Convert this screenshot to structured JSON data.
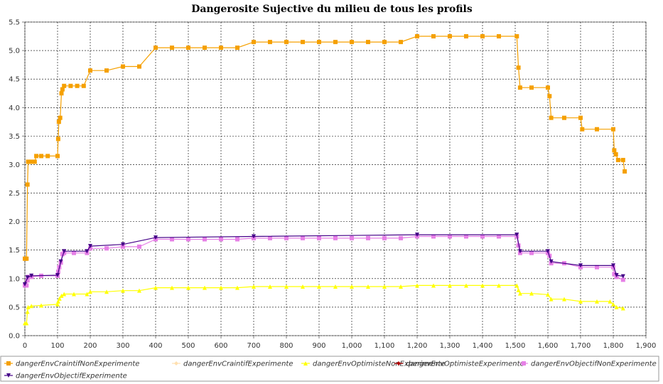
{
  "chart_data": {
    "type": "line",
    "title": "Dangerosite Sujective du milieu de tous les profils",
    "xlabel": "",
    "ylabel": "",
    "xlim": [
      0,
      1900
    ],
    "ylim": [
      0,
      5.5
    ],
    "x_ticks": [
      0,
      100,
      200,
      300,
      400,
      500,
      600,
      700,
      800,
      900,
      1000,
      1100,
      1200,
      1300,
      1400,
      1500,
      1600,
      1700,
      1800,
      1900
    ],
    "x_tick_labels": [
      "0",
      "100",
      "200",
      "300",
      "400",
      "500",
      "600",
      "700",
      "800",
      "900",
      "1,000",
      "1,100",
      "1,200",
      "1,300",
      "1,400",
      "1,500",
      "1,600",
      "1,700",
      "1,800",
      "1,900"
    ],
    "y_ticks": [
      0,
      0.5,
      1.0,
      1.5,
      2.0,
      2.5,
      3.0,
      3.5,
      4.0,
      4.5,
      5.0,
      5.5
    ],
    "y_tick_labels": [
      "0.0",
      "0.5",
      "1.0",
      "1.5",
      "2.0",
      "2.5",
      "3.0",
      "3.5",
      "4.0",
      "4.5",
      "5.0",
      "5.5"
    ],
    "grid": true,
    "legend_position": "bottom",
    "series": [
      {
        "name": "dangerEnvCraintifNonExperimente",
        "color": "#f5a000",
        "marker": "square",
        "points": [
          [
            0,
            1.35
          ],
          [
            5,
            1.35
          ],
          [
            8,
            2.65
          ],
          [
            10,
            3.05
          ],
          [
            20,
            3.05
          ],
          [
            30,
            3.05
          ],
          [
            35,
            3.15
          ],
          [
            50,
            3.15
          ],
          [
            70,
            3.15
          ],
          [
            100,
            3.15
          ],
          [
            102,
            3.45
          ],
          [
            104,
            3.75
          ],
          [
            108,
            3.82
          ],
          [
            112,
            4.25
          ],
          [
            115,
            4.32
          ],
          [
            120,
            4.38
          ],
          [
            140,
            4.38
          ],
          [
            160,
            4.38
          ],
          [
            180,
            4.38
          ],
          [
            200,
            4.65
          ],
          [
            250,
            4.65
          ],
          [
            300,
            4.72
          ],
          [
            350,
            4.72
          ],
          [
            400,
            5.05
          ],
          [
            450,
            5.05
          ],
          [
            500,
            5.05
          ],
          [
            550,
            5.05
          ],
          [
            600,
            5.05
          ],
          [
            650,
            5.05
          ],
          [
            700,
            5.15
          ],
          [
            750,
            5.15
          ],
          [
            800,
            5.15
          ],
          [
            850,
            5.15
          ],
          [
            900,
            5.15
          ],
          [
            950,
            5.15
          ],
          [
            1000,
            5.15
          ],
          [
            1050,
            5.15
          ],
          [
            1100,
            5.15
          ],
          [
            1150,
            5.15
          ],
          [
            1200,
            5.25
          ],
          [
            1250,
            5.25
          ],
          [
            1300,
            5.25
          ],
          [
            1350,
            5.25
          ],
          [
            1400,
            5.25
          ],
          [
            1450,
            5.25
          ],
          [
            1505,
            5.25
          ],
          [
            1510,
            4.7
          ],
          [
            1515,
            4.35
          ],
          [
            1550,
            4.35
          ],
          [
            1600,
            4.35
          ],
          [
            1605,
            4.2
          ],
          [
            1610,
            3.82
          ],
          [
            1650,
            3.82
          ],
          [
            1700,
            3.82
          ],
          [
            1705,
            3.62
          ],
          [
            1750,
            3.62
          ],
          [
            1800,
            3.62
          ],
          [
            1803,
            3.25
          ],
          [
            1808,
            3.18
          ],
          [
            1815,
            3.08
          ],
          [
            1830,
            3.08
          ],
          [
            1835,
            2.88
          ]
        ]
      },
      {
        "name": "dangerEnvCraintifExperimente",
        "color": "#ffe0b0",
        "marker": "diamond",
        "points": []
      },
      {
        "name": "dangerEnvOptimisteNonExperimente",
        "color": "#ffff00",
        "marker": "triangle-up",
        "points": [
          [
            0,
            0.22
          ],
          [
            5,
            0.22
          ],
          [
            8,
            0.42
          ],
          [
            10,
            0.5
          ],
          [
            20,
            0.52
          ],
          [
            50,
            0.53
          ],
          [
            100,
            0.55
          ],
          [
            102,
            0.6
          ],
          [
            106,
            0.65
          ],
          [
            112,
            0.7
          ],
          [
            120,
            0.73
          ],
          [
            150,
            0.73
          ],
          [
            190,
            0.73
          ],
          [
            200,
            0.77
          ],
          [
            250,
            0.77
          ],
          [
            300,
            0.79
          ],
          [
            350,
            0.79
          ],
          [
            400,
            0.84
          ],
          [
            450,
            0.84
          ],
          [
            500,
            0.84
          ],
          [
            550,
            0.84
          ],
          [
            600,
            0.84
          ],
          [
            650,
            0.84
          ],
          [
            700,
            0.86
          ],
          [
            750,
            0.86
          ],
          [
            800,
            0.86
          ],
          [
            850,
            0.86
          ],
          [
            900,
            0.86
          ],
          [
            950,
            0.86
          ],
          [
            1000,
            0.86
          ],
          [
            1050,
            0.86
          ],
          [
            1100,
            0.86
          ],
          [
            1150,
            0.86
          ],
          [
            1200,
            0.88
          ],
          [
            1250,
            0.88
          ],
          [
            1300,
            0.88
          ],
          [
            1350,
            0.88
          ],
          [
            1400,
            0.88
          ],
          [
            1450,
            0.88
          ],
          [
            1505,
            0.88
          ],
          [
            1510,
            0.8
          ],
          [
            1515,
            0.74
          ],
          [
            1550,
            0.74
          ],
          [
            1600,
            0.72
          ],
          [
            1610,
            0.64
          ],
          [
            1650,
            0.64
          ],
          [
            1700,
            0.6
          ],
          [
            1750,
            0.6
          ],
          [
            1790,
            0.6
          ],
          [
            1800,
            0.55
          ],
          [
            1810,
            0.5
          ],
          [
            1830,
            0.48
          ]
        ]
      },
      {
        "name": "dangerEnvOptimisteExperimente",
        "color": "#b00000",
        "marker": "diamond",
        "points": []
      },
      {
        "name": "dangerEnvObjectifNonExperimente",
        "color": "#e680e6",
        "marker": "square",
        "points": [
          [
            0,
            0.88
          ],
          [
            5,
            0.88
          ],
          [
            8,
            0.97
          ],
          [
            10,
            1.03
          ],
          [
            20,
            1.03
          ],
          [
            50,
            1.05
          ],
          [
            100,
            1.05
          ],
          [
            102,
            1.12
          ],
          [
            105,
            1.2
          ],
          [
            110,
            1.28
          ],
          [
            115,
            1.43
          ],
          [
            120,
            1.45
          ],
          [
            150,
            1.45
          ],
          [
            190,
            1.45
          ],
          [
            200,
            1.53
          ],
          [
            250,
            1.53
          ],
          [
            300,
            1.56
          ],
          [
            350,
            1.56
          ],
          [
            400,
            1.69
          ],
          [
            450,
            1.69
          ],
          [
            500,
            1.69
          ],
          [
            550,
            1.69
          ],
          [
            600,
            1.69
          ],
          [
            650,
            1.69
          ],
          [
            700,
            1.71
          ],
          [
            750,
            1.71
          ],
          [
            800,
            1.71
          ],
          [
            850,
            1.71
          ],
          [
            900,
            1.71
          ],
          [
            950,
            1.71
          ],
          [
            1000,
            1.71
          ],
          [
            1050,
            1.71
          ],
          [
            1100,
            1.71
          ],
          [
            1150,
            1.71
          ],
          [
            1200,
            1.74
          ],
          [
            1250,
            1.74
          ],
          [
            1300,
            1.74
          ],
          [
            1350,
            1.74
          ],
          [
            1400,
            1.74
          ],
          [
            1450,
            1.74
          ],
          [
            1505,
            1.74
          ],
          [
            1510,
            1.58
          ],
          [
            1515,
            1.45
          ],
          [
            1550,
            1.45
          ],
          [
            1600,
            1.45
          ],
          [
            1605,
            1.4
          ],
          [
            1610,
            1.27
          ],
          [
            1650,
            1.27
          ],
          [
            1700,
            1.2
          ],
          [
            1750,
            1.2
          ],
          [
            1800,
            1.2
          ],
          [
            1803,
            1.08
          ],
          [
            1810,
            1.03
          ],
          [
            1830,
            0.98
          ]
        ]
      },
      {
        "name": "dangerEnvObjectifExperimente",
        "color": "#440088",
        "marker": "triangle-down",
        "points": [
          [
            0,
            0.9
          ],
          [
            8,
            1.02
          ],
          [
            20,
            1.05
          ],
          [
            100,
            1.06
          ],
          [
            110,
            1.3
          ],
          [
            120,
            1.48
          ],
          [
            190,
            1.48
          ],
          [
            200,
            1.57
          ],
          [
            300,
            1.6
          ],
          [
            400,
            1.72
          ],
          [
            700,
            1.74
          ],
          [
            1200,
            1.77
          ],
          [
            1505,
            1.77
          ],
          [
            1515,
            1.48
          ],
          [
            1600,
            1.48
          ],
          [
            1610,
            1.3
          ],
          [
            1700,
            1.23
          ],
          [
            1800,
            1.23
          ],
          [
            1810,
            1.06
          ],
          [
            1830,
            1.04
          ]
        ]
      }
    ]
  }
}
